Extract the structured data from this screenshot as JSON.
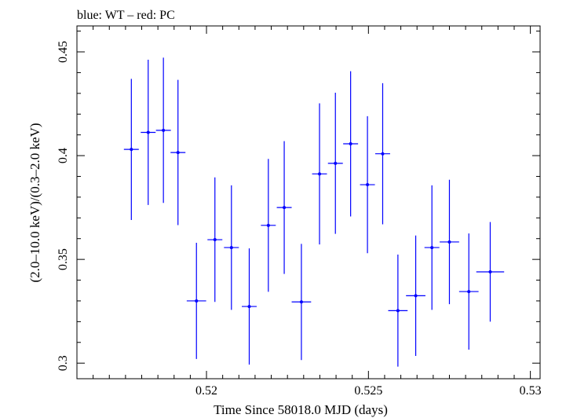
{
  "header_note": "blue: WT – red: PC",
  "chart_data": {
    "type": "scatter",
    "title": "",
    "xlabel": "Time Since 58018.0 MJD (days)",
    "ylabel": "(2.0–10.0 keV)/(0.3–2.0 keV)",
    "xlim": [
      0.516,
      0.5303
    ],
    "ylim": [
      0.2925,
      0.4625
    ],
    "x_ticks": [
      0.52,
      0.525,
      0.53
    ],
    "x_tick_labels": [
      "0.52",
      "0.525",
      "0.53"
    ],
    "y_ticks": [
      0.3,
      0.35,
      0.4,
      0.45
    ],
    "y_tick_labels": [
      "0.3",
      "0.35",
      "0.4",
      "0.45"
    ],
    "grid": false,
    "series": [
      {
        "color": "#0000ff",
        "points": [
          {
            "x": 0.51768,
            "y": 0.403,
            "xerr": 0.00023,
            "yerr": 0.034
          },
          {
            "x": 0.5182,
            "y": 0.4112,
            "xerr": 0.00023,
            "yerr": 0.035
          },
          {
            "x": 0.51867,
            "y": 0.4122,
            "xerr": 0.00023,
            "yerr": 0.035
          },
          {
            "x": 0.51912,
            "y": 0.4015,
            "xerr": 0.00023,
            "yerr": 0.035
          },
          {
            "x": 0.51969,
            "y": 0.33,
            "xerr": 0.0003,
            "yerr": 0.028
          },
          {
            "x": 0.52026,
            "y": 0.3595,
            "xerr": 0.00023,
            "yerr": 0.03
          },
          {
            "x": 0.52077,
            "y": 0.3557,
            "xerr": 0.00023,
            "yerr": 0.03
          },
          {
            "x": 0.52132,
            "y": 0.3273,
            "xerr": 0.00023,
            "yerr": 0.028
          },
          {
            "x": 0.52191,
            "y": 0.3664,
            "xerr": 0.00023,
            "yerr": 0.032
          },
          {
            "x": 0.5224,
            "y": 0.375,
            "xerr": 0.00023,
            "yerr": 0.032
          },
          {
            "x": 0.52293,
            "y": 0.3295,
            "xerr": 0.0003,
            "yerr": 0.028
          },
          {
            "x": 0.52349,
            "y": 0.3912,
            "xerr": 0.00023,
            "yerr": 0.034
          },
          {
            "x": 0.52398,
            "y": 0.3963,
            "xerr": 0.00023,
            "yerr": 0.034
          },
          {
            "x": 0.52445,
            "y": 0.4057,
            "xerr": 0.00023,
            "yerr": 0.035
          },
          {
            "x": 0.52497,
            "y": 0.386,
            "xerr": 0.00023,
            "yerr": 0.033
          },
          {
            "x": 0.52544,
            "y": 0.4009,
            "xerr": 0.00023,
            "yerr": 0.034
          },
          {
            "x": 0.52591,
            "y": 0.3253,
            "xerr": 0.0003,
            "yerr": 0.027
          },
          {
            "x": 0.52646,
            "y": 0.3325,
            "xerr": 0.0003,
            "yerr": 0.029
          },
          {
            "x": 0.52696,
            "y": 0.3557,
            "xerr": 0.00023,
            "yerr": 0.03
          },
          {
            "x": 0.5275,
            "y": 0.3584,
            "xerr": 0.0003,
            "yerr": 0.03
          },
          {
            "x": 0.5281,
            "y": 0.3345,
            "xerr": 0.0003,
            "yerr": 0.028
          },
          {
            "x": 0.52876,
            "y": 0.344,
            "xerr": 0.00043,
            "yerr": 0.024
          }
        ]
      }
    ]
  }
}
